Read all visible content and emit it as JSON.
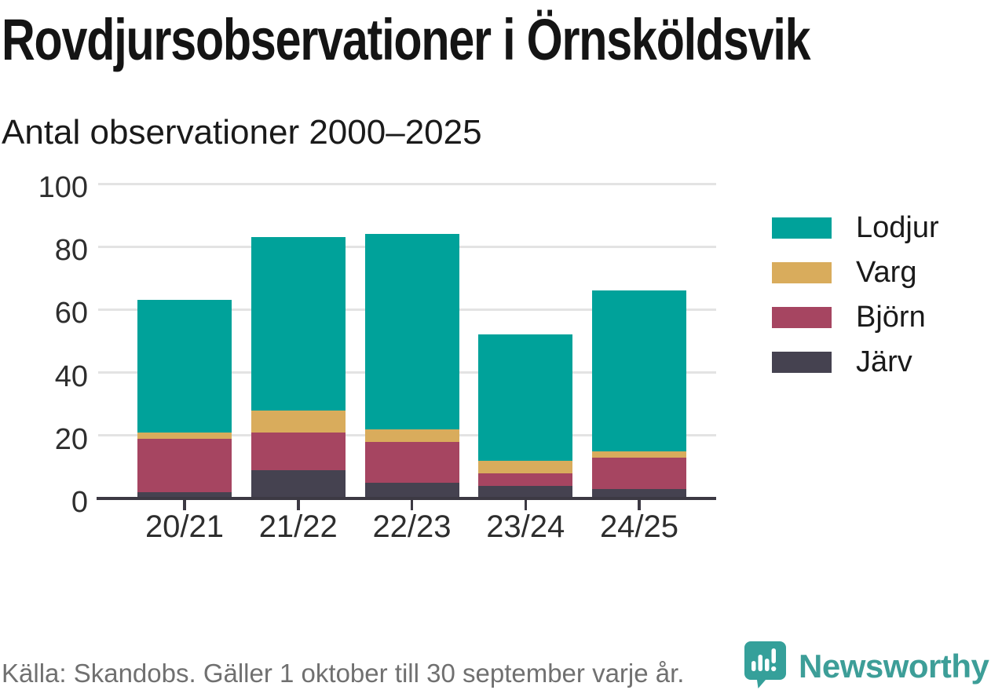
{
  "header": {
    "title": "Rovdjursobservationer i Örnsköldsvik",
    "subtitle": "Antal observationer 2000–2025"
  },
  "chart_data": {
    "type": "bar",
    "stacked": true,
    "title": "Rovdjursobservationer i Örnsköldsvik",
    "subtitle": "Antal observationer 2000–2025",
    "xlabel": "",
    "ylabel": "",
    "categories": [
      "20/21",
      "21/22",
      "22/23",
      "23/24",
      "24/25"
    ],
    "series": [
      {
        "name": "Järv",
        "color": "#454250",
        "values": [
          2,
          9,
          5,
          4,
          3
        ]
      },
      {
        "name": "Björn",
        "color": "#a64561",
        "values": [
          17,
          12,
          13,
          4,
          10
        ]
      },
      {
        "name": "Varg",
        "color": "#d9ac5c",
        "values": [
          2,
          7,
          4,
          4,
          2
        ]
      },
      {
        "name": "Lodjur",
        "color": "#00a29a",
        "values": [
          42,
          55,
          62,
          40,
          51
        ]
      }
    ],
    "stack_order_bottom_to_top": [
      "Järv",
      "Björn",
      "Varg",
      "Lodjur"
    ],
    "totals": [
      63,
      83,
      84,
      52,
      66
    ],
    "ylim": [
      0,
      100
    ],
    "yticks": [
      0,
      20,
      40,
      60,
      80,
      100
    ],
    "grid": "horizontal",
    "legend_position": "right",
    "legend_order_top_to_bottom": [
      "Lodjur",
      "Varg",
      "Björn",
      "Järv"
    ]
  },
  "colors": {
    "lodjur": "#00a29a",
    "varg": "#d9ac5c",
    "bjorn": "#a64561",
    "jarv": "#454250",
    "gridline": "#e3e3e3",
    "axis": "#3c3943",
    "text_dark": "#1a1a1a",
    "tick_label": "#2e2e2e",
    "footer_text": "#707070",
    "brand_teal": "#3d9e98"
  },
  "footer": {
    "source": "Källa: Skandobs. Gäller 1 oktober till 30 september varje år.",
    "brand": "Newsworthy",
    "brand_icon": "newsworthy-speech-bubble-bar-chart-icon"
  }
}
